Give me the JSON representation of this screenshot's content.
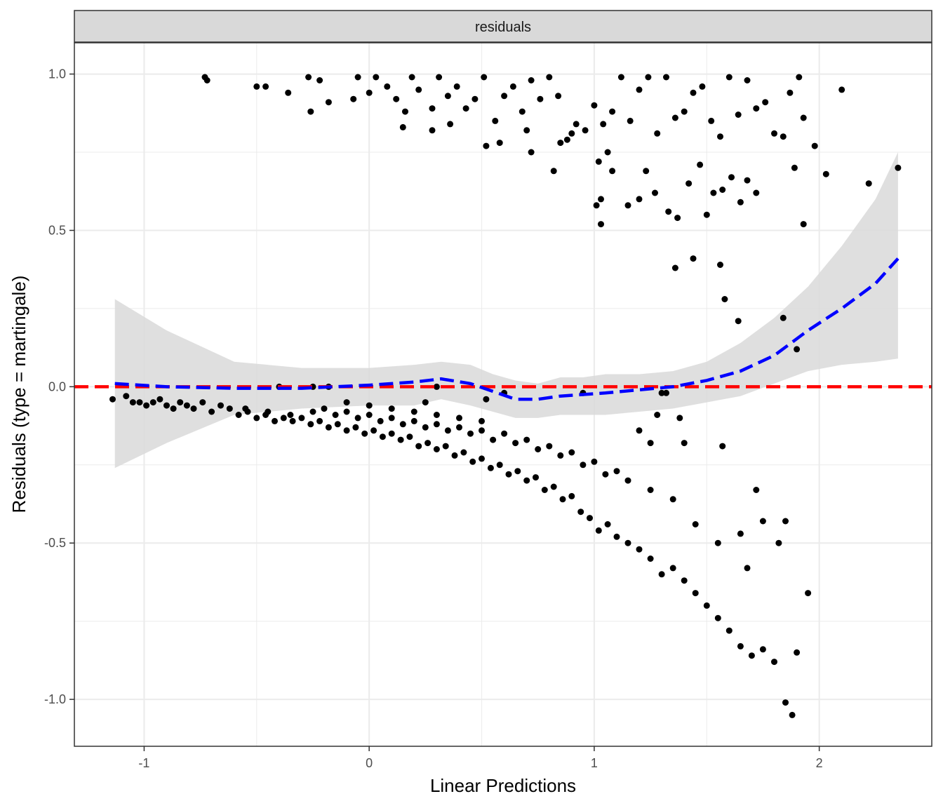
{
  "chart_data": {
    "type": "scatter",
    "facet_label": "residuals",
    "xlabel": "Linear Predictions",
    "ylabel": "Residuals (type = martingale)",
    "xlim": [
      -1.31,
      2.5
    ],
    "ylim": [
      -1.15,
      1.1
    ],
    "x_ticks": [
      -1,
      0,
      1,
      2
    ],
    "x_tick_labels": [
      "-1",
      "0",
      "1",
      "2"
    ],
    "y_ticks": [
      1.0,
      0.5,
      0.0,
      -0.5,
      -1.0
    ],
    "y_tick_labels": [
      "1.0",
      "0.5",
      "0.0",
      "-0.5",
      "-1.0"
    ],
    "grid": true,
    "colors": {
      "points": "#000000",
      "smooth_line": "#0000ff",
      "reference_line": "#ff0000",
      "ribbon": "#d9d9d9"
    },
    "reference_line": {
      "y": 0,
      "style": "dashed"
    },
    "smooth": {
      "x": [
        -1.13,
        -0.9,
        -0.6,
        -0.3,
        0.0,
        0.2,
        0.32,
        0.45,
        0.55,
        0.65,
        0.75,
        0.85,
        0.95,
        1.05,
        1.2,
        1.35,
        1.5,
        1.65,
        1.8,
        1.95,
        2.1,
        2.25,
        2.35
      ],
      "y": [
        0.01,
        0.0,
        -0.005,
        -0.005,
        0.005,
        0.015,
        0.025,
        0.01,
        -0.015,
        -0.04,
        -0.04,
        -0.03,
        -0.025,
        -0.02,
        -0.01,
        0.0,
        0.02,
        0.05,
        0.1,
        0.18,
        0.25,
        0.33,
        0.41
      ],
      "lower": [
        -0.26,
        -0.18,
        -0.09,
        -0.07,
        -0.06,
        -0.06,
        -0.04,
        -0.06,
        -0.08,
        -0.1,
        -0.1,
        -0.09,
        -0.09,
        -0.09,
        -0.08,
        -0.07,
        -0.05,
        -0.03,
        0.01,
        0.05,
        0.07,
        0.08,
        0.09
      ],
      "upper": [
        0.28,
        0.18,
        0.08,
        0.06,
        0.06,
        0.07,
        0.08,
        0.07,
        0.04,
        0.02,
        0.01,
        0.03,
        0.03,
        0.04,
        0.04,
        0.05,
        0.08,
        0.14,
        0.22,
        0.32,
        0.45,
        0.6,
        0.75
      ]
    },
    "points": [
      [
        -1.14,
        -0.04
      ],
      [
        -1.08,
        -0.03
      ],
      [
        -1.05,
        -0.05
      ],
      [
        -1.02,
        -0.05
      ],
      [
        -0.99,
        -0.06
      ],
      [
        -0.96,
        -0.05
      ],
      [
        -0.93,
        -0.04
      ],
      [
        -0.9,
        -0.06
      ],
      [
        -0.87,
        -0.07
      ],
      [
        -0.84,
        -0.05
      ],
      [
        -0.81,
        -0.06
      ],
      [
        -0.78,
        -0.07
      ],
      [
        -0.74,
        -0.05
      ],
      [
        -0.7,
        -0.08
      ],
      [
        -0.66,
        -0.06
      ],
      [
        -0.62,
        -0.07
      ],
      [
        -0.58,
        -0.09
      ],
      [
        -0.54,
        -0.08
      ],
      [
        -0.5,
        -0.1
      ],
      [
        -0.46,
        -0.09
      ],
      [
        -0.42,
        -0.11
      ],
      [
        -0.38,
        -0.1
      ],
      [
        -0.34,
        -0.11
      ],
      [
        -0.3,
        -0.1
      ],
      [
        -0.26,
        -0.12
      ],
      [
        -0.22,
        -0.11
      ],
      [
        -0.18,
        -0.13
      ],
      [
        -0.14,
        -0.12
      ],
      [
        -0.1,
        -0.14
      ],
      [
        -0.06,
        -0.13
      ],
      [
        -0.02,
        -0.15
      ],
      [
        0.02,
        -0.14
      ],
      [
        0.06,
        -0.16
      ],
      [
        0.1,
        -0.15
      ],
      [
        0.14,
        -0.17
      ],
      [
        0.18,
        -0.16
      ],
      [
        0.22,
        -0.19
      ],
      [
        0.26,
        -0.18
      ],
      [
        0.3,
        -0.2
      ],
      [
        0.34,
        -0.19
      ],
      [
        0.38,
        -0.22
      ],
      [
        0.42,
        -0.21
      ],
      [
        0.46,
        -0.24
      ],
      [
        0.5,
        -0.23
      ],
      [
        0.54,
        -0.26
      ],
      [
        0.58,
        -0.25
      ],
      [
        0.62,
        -0.28
      ],
      [
        0.66,
        -0.27
      ],
      [
        0.7,
        -0.3
      ],
      [
        0.74,
        -0.29
      ],
      [
        0.78,
        -0.33
      ],
      [
        0.82,
        -0.32
      ],
      [
        0.86,
        -0.36
      ],
      [
        0.9,
        -0.35
      ],
      [
        0.94,
        -0.4
      ],
      [
        0.98,
        -0.42
      ],
      [
        1.02,
        -0.46
      ],
      [
        1.06,
        -0.44
      ],
      [
        1.1,
        -0.48
      ],
      [
        1.15,
        -0.5
      ],
      [
        1.2,
        -0.52
      ],
      [
        1.25,
        -0.55
      ],
      [
        1.3,
        -0.6
      ],
      [
        1.35,
        -0.58
      ],
      [
        1.4,
        -0.62
      ],
      [
        1.45,
        -0.66
      ],
      [
        1.5,
        -0.7
      ],
      [
        1.55,
        -0.74
      ],
      [
        1.6,
        -0.78
      ],
      [
        1.65,
        -0.83
      ],
      [
        1.7,
        -0.86
      ],
      [
        1.75,
        -0.84
      ],
      [
        1.8,
        -0.88
      ],
      [
        1.85,
        -1.01
      ],
      [
        1.88,
        -1.05
      ],
      [
        1.9,
        -0.85
      ],
      [
        1.95,
        -0.66
      ],
      [
        -0.55,
        -0.07
      ],
      [
        -0.45,
        -0.08
      ],
      [
        -0.35,
        -0.09
      ],
      [
        -0.25,
        -0.08
      ],
      [
        -0.15,
        -0.09
      ],
      [
        -0.05,
        -0.1
      ],
      [
        0.05,
        -0.11
      ],
      [
        0.15,
        -0.12
      ],
      [
        0.25,
        -0.13
      ],
      [
        0.35,
        -0.14
      ],
      [
        0.45,
        -0.15
      ],
      [
        0.55,
        -0.17
      ],
      [
        0.65,
        -0.18
      ],
      [
        0.75,
        -0.2
      ],
      [
        0.85,
        -0.22
      ],
      [
        0.95,
        -0.25
      ],
      [
        1.05,
        -0.28
      ],
      [
        1.15,
        -0.3
      ],
      [
        1.25,
        -0.33
      ],
      [
        1.35,
        -0.36
      ],
      [
        1.45,
        -0.44
      ],
      [
        1.55,
        -0.5
      ],
      [
        1.65,
        -0.47
      ],
      [
        1.75,
        -0.43
      ],
      [
        1.85,
        -0.43
      ],
      [
        -0.2,
        -0.07
      ],
      [
        -0.1,
        -0.08
      ],
      [
        0.0,
        -0.09
      ],
      [
        0.1,
        -0.1
      ],
      [
        0.2,
        -0.11
      ],
      [
        0.3,
        -0.12
      ],
      [
        0.4,
        -0.13
      ],
      [
        0.5,
        -0.14
      ],
      [
        0.6,
        -0.15
      ],
      [
        0.7,
        -0.17
      ],
      [
        0.8,
        -0.19
      ],
      [
        0.9,
        -0.21
      ],
      [
        1.0,
        -0.24
      ],
      [
        1.1,
        -0.27
      ],
      [
        1.2,
        -0.14
      ],
      [
        1.25,
        -0.18
      ],
      [
        1.38,
        -0.1
      ],
      [
        1.4,
        -0.18
      ],
      [
        1.57,
        -0.19
      ],
      [
        1.28,
        -0.09
      ],
      [
        1.72,
        -0.33
      ],
      [
        1.82,
        -0.5
      ],
      [
        1.68,
        -0.58
      ],
      [
        -0.1,
        -0.05
      ],
      [
        0.0,
        -0.06
      ],
      [
        0.1,
        -0.07
      ],
      [
        0.2,
        -0.08
      ],
      [
        0.3,
        -0.09
      ],
      [
        0.4,
        -0.1
      ],
      [
        0.5,
        -0.11
      ],
      [
        0.25,
        -0.05
      ],
      [
        0.6,
        -0.02
      ],
      [
        0.52,
        -0.04
      ],
      [
        -0.4,
        0.0
      ],
      [
        -0.25,
        0.0
      ],
      [
        -0.18,
        0.0
      ],
      [
        0.3,
        0.0
      ],
      [
        0.95,
        -0.02
      ],
      [
        1.3,
        -0.02
      ],
      [
        1.32,
        -0.02
      ],
      [
        -0.73,
        0.99
      ],
      [
        -0.72,
        0.98
      ],
      [
        -0.5,
        0.96
      ],
      [
        -0.46,
        0.96
      ],
      [
        -0.36,
        0.94
      ],
      [
        -0.27,
        0.99
      ],
      [
        -0.22,
        0.98
      ],
      [
        -0.18,
        0.91
      ],
      [
        -0.07,
        0.92
      ],
      [
        -0.05,
        0.99
      ],
      [
        0.0,
        0.94
      ],
      [
        0.03,
        0.99
      ],
      [
        0.08,
        0.96
      ],
      [
        0.12,
        0.92
      ],
      [
        0.16,
        0.88
      ],
      [
        0.19,
        0.99
      ],
      [
        0.22,
        0.95
      ],
      [
        0.28,
        0.89
      ],
      [
        0.31,
        0.99
      ],
      [
        0.35,
        0.93
      ],
      [
        0.39,
        0.96
      ],
      [
        0.43,
        0.89
      ],
      [
        0.47,
        0.92
      ],
      [
        0.51,
        0.99
      ],
      [
        0.56,
        0.85
      ],
      [
        0.6,
        0.93
      ],
      [
        0.64,
        0.96
      ],
      [
        0.68,
        0.88
      ],
      [
        0.72,
        0.98
      ],
      [
        0.76,
        0.92
      ],
      [
        0.8,
        0.99
      ],
      [
        0.84,
        0.93
      ],
      [
        0.88,
        0.79
      ],
      [
        0.92,
        0.84
      ],
      [
        0.96,
        0.82
      ],
      [
        1.0,
        0.9
      ],
      [
        1.04,
        0.84
      ],
      [
        1.08,
        0.88
      ],
      [
        1.12,
        0.99
      ],
      [
        1.16,
        0.85
      ],
      [
        1.2,
        0.95
      ],
      [
        1.24,
        0.99
      ],
      [
        1.28,
        0.81
      ],
      [
        1.32,
        0.99
      ],
      [
        1.36,
        0.86
      ],
      [
        1.4,
        0.88
      ],
      [
        1.44,
        0.94
      ],
      [
        1.48,
        0.96
      ],
      [
        1.52,
        0.85
      ],
      [
        1.56,
        0.8
      ],
      [
        1.6,
        0.99
      ],
      [
        1.64,
        0.87
      ],
      [
        1.68,
        0.98
      ],
      [
        1.72,
        0.89
      ],
      [
        1.76,
        0.91
      ],
      [
        1.8,
        0.81
      ],
      [
        1.87,
        0.94
      ],
      [
        1.91,
        0.99
      ],
      [
        1.93,
        0.86
      ],
      [
        2.1,
        0.95
      ],
      [
        -0.26,
        0.88
      ],
      [
        0.15,
        0.83
      ],
      [
        0.28,
        0.82
      ],
      [
        0.36,
        0.84
      ],
      [
        0.52,
        0.77
      ],
      [
        0.58,
        0.78
      ],
      [
        0.7,
        0.82
      ],
      [
        0.72,
        0.75
      ],
      [
        0.82,
        0.69
      ],
      [
        0.85,
        0.78
      ],
      [
        0.9,
        0.81
      ],
      [
        1.02,
        0.72
      ],
      [
        1.06,
        0.75
      ],
      [
        1.08,
        0.69
      ],
      [
        1.15,
        0.58
      ],
      [
        1.2,
        0.6
      ],
      [
        1.23,
        0.69
      ],
      [
        1.27,
        0.62
      ],
      [
        1.33,
        0.56
      ],
      [
        1.37,
        0.54
      ],
      [
        1.42,
        0.65
      ],
      [
        1.47,
        0.71
      ],
      [
        1.5,
        0.55
      ],
      [
        1.53,
        0.62
      ],
      [
        1.57,
        0.63
      ],
      [
        1.61,
        0.67
      ],
      [
        1.65,
        0.59
      ],
      [
        1.68,
        0.66
      ],
      [
        1.72,
        0.62
      ],
      [
        1.84,
        0.8
      ],
      [
        1.89,
        0.7
      ],
      [
        1.93,
        0.52
      ],
      [
        1.98,
        0.77
      ],
      [
        2.03,
        0.68
      ],
      [
        2.22,
        0.65
      ],
      [
        2.35,
        0.7
      ],
      [
        1.01,
        0.58
      ],
      [
        1.03,
        0.6
      ],
      [
        1.03,
        0.52
      ],
      [
        1.36,
        0.38
      ],
      [
        1.44,
        0.41
      ],
      [
        1.56,
        0.39
      ],
      [
        1.58,
        0.28
      ],
      [
        1.64,
        0.21
      ],
      [
        1.84,
        0.22
      ],
      [
        1.9,
        0.12
      ]
    ]
  }
}
